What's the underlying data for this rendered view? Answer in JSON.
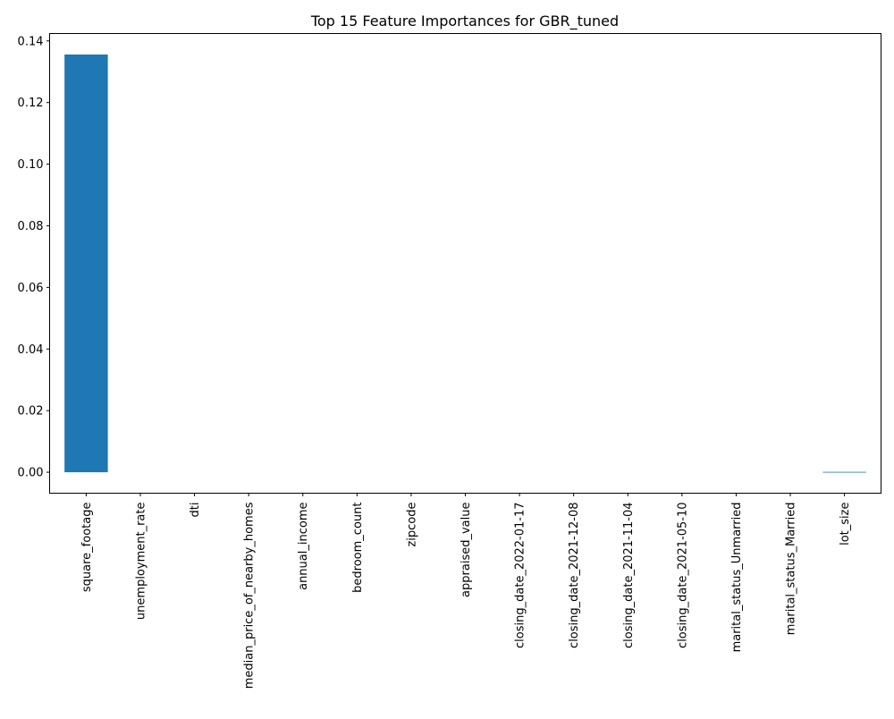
{
  "chart_data": {
    "type": "bar",
    "title": "Top 15 Feature Importances for GBR_tuned",
    "xlabel": "",
    "ylabel": "",
    "categories": [
      "square_footage",
      "unemployment_rate",
      "dti",
      "median_price_of_nearby_homes",
      "annual_income",
      "bedroom_count",
      "zipcode",
      "appraised_value",
      "closing_date_2022-01-17",
      "closing_date_2021-12-08",
      "closing_date_2021-11-04",
      "closing_date_2021-05-10",
      "marital_status_Unmarried",
      "marital_status_Married",
      "lot_size"
    ],
    "values": [
      0.1356,
      0,
      0,
      0,
      0,
      0,
      0,
      0,
      0,
      0,
      0,
      0,
      0,
      0,
      -0.0001
    ],
    "ylim": [
      -0.0068,
      0.1424
    ],
    "yticks": [
      0.0,
      0.02,
      0.04,
      0.06,
      0.08,
      0.1,
      0.12,
      0.14
    ],
    "ytick_labels": [
      "0.00",
      "0.02",
      "0.04",
      "0.06",
      "0.08",
      "0.10",
      "0.12",
      "0.14"
    ],
    "grid": false,
    "bar_color": "#1f77b4"
  }
}
